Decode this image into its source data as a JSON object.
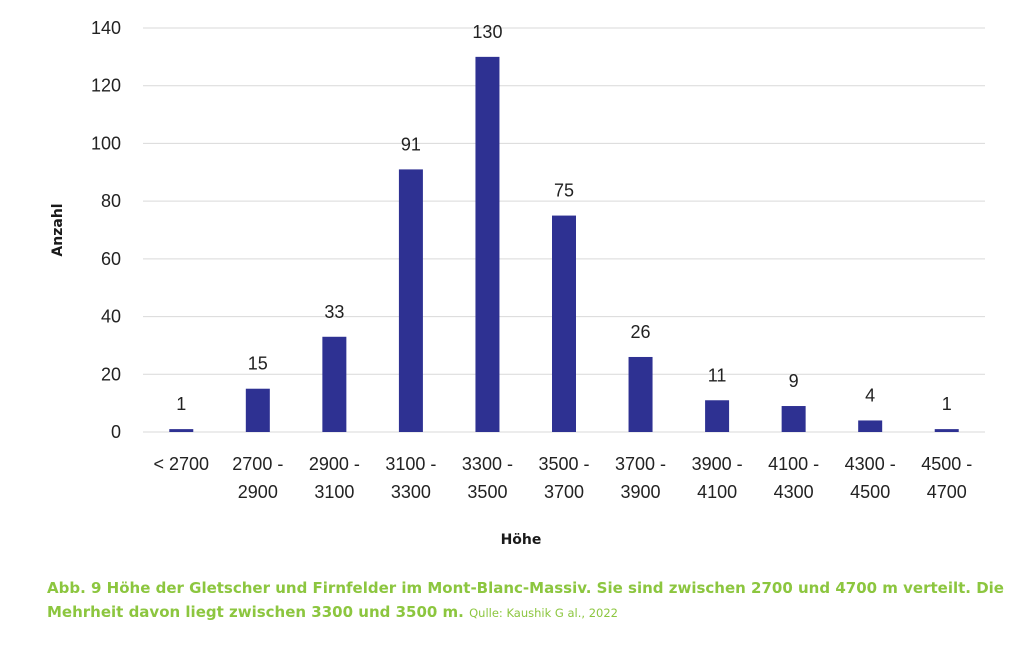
{
  "chart_data": {
    "type": "bar",
    "categories": [
      [
        "< 2700"
      ],
      [
        "2700 -",
        "2900"
      ],
      [
        "2900 -",
        "3100"
      ],
      [
        "3100 -",
        "3300"
      ],
      [
        "3300 -",
        "3500"
      ],
      [
        "3500 -",
        "3700"
      ],
      [
        "3700 -",
        "3900"
      ],
      [
        "3900 -",
        "4100"
      ],
      [
        "4100 -",
        "4300"
      ],
      [
        "4300 -",
        "4500"
      ],
      [
        "4500 -",
        "4700"
      ]
    ],
    "values": [
      1,
      15,
      33,
      91,
      130,
      75,
      26,
      11,
      9,
      4,
      1
    ],
    "xlabel": "Höhe",
    "ylabel": "Anzahl",
    "ylim": [
      0,
      140
    ],
    "yticks": [
      0,
      20,
      40,
      60,
      80,
      100,
      120,
      140
    ],
    "grid": true,
    "bar_color": "#2e3192",
    "grid_color": "#d9d9d9"
  },
  "caption": {
    "text": "Abb. 9 Höhe der Gletscher und Firnfelder im Mont-Blanc-Massiv. Sie sind zwischen 2700 und 4700 m verteilt. Die Mehrheit davon liegt zwischen 3300 und 3500 m.",
    "source": "Qulle: Kaushik G al., 2022",
    "color": "#8cc63f"
  }
}
